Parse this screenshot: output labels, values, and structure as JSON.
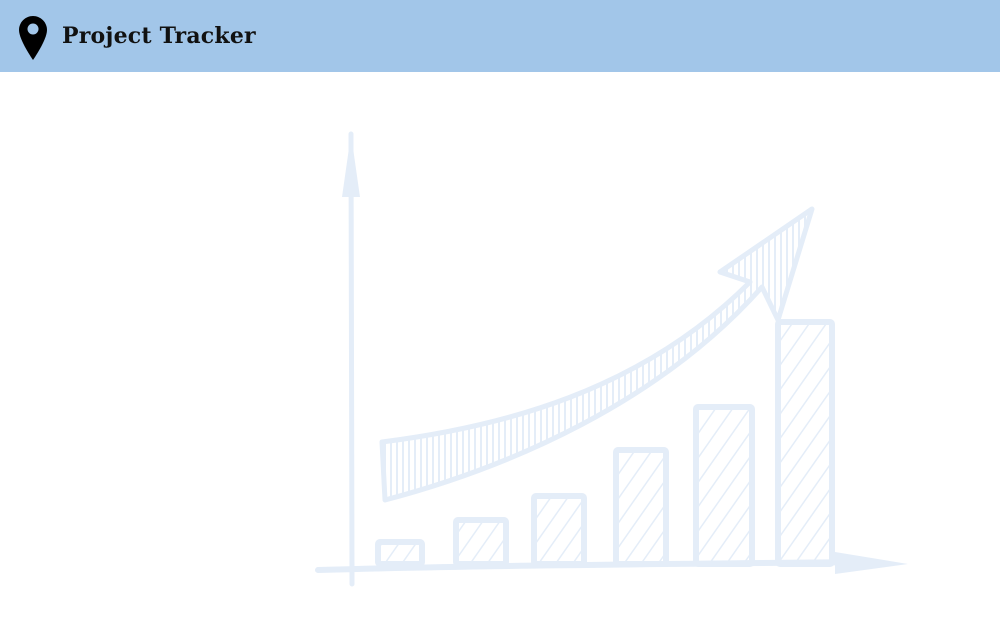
{
  "header": {
    "title": "Project Tracker",
    "icon": "map-pin-icon",
    "background_color": "#a2c6e9"
  },
  "illustration": {
    "name": "growth-chart-sketch",
    "bar_levels": [
      0.09,
      0.18,
      0.28,
      0.47,
      0.65,
      1.0
    ],
    "color": "#e4edf8"
  }
}
